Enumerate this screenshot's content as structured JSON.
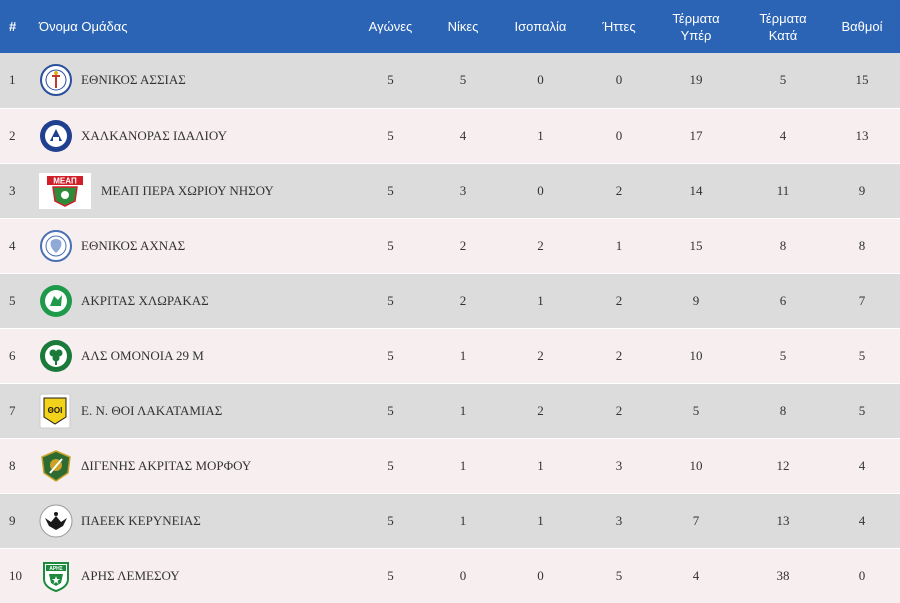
{
  "table": {
    "headers": {
      "rank": "#",
      "team": "Όνομα Ομάδας",
      "played": "Αγώνες",
      "wins": "Νίκες",
      "draws": "Ισοπαλία",
      "losses": "Ήττες",
      "goals_for": "Τέρματα Υπέρ",
      "goals_against": "Τέρματα Κατά",
      "points": "Βαθμοί"
    },
    "rows": [
      {
        "rank": "1",
        "team": "ΕΘΝΙΚΟΣ ΑΣΣΙΑΣ",
        "logo_icon": "ethnikos-assias-crest-icon",
        "played": "5",
        "wins": "5",
        "draws": "0",
        "losses": "0",
        "gf": "19",
        "ga": "5",
        "pts": "15"
      },
      {
        "rank": "2",
        "team": "ΧΑΛΚΑΝΟΡΑΣ ΙΔΑΛΙΟΥ",
        "logo_icon": "chalkanoras-crest-icon",
        "played": "5",
        "wins": "4",
        "draws": "1",
        "losses": "0",
        "gf": "17",
        "ga": "4",
        "pts": "13"
      },
      {
        "rank": "3",
        "team": "ΜΕΑΠ ΠΕΡΑ ΧΩΡΙΟΥ ΝΗΣΟΥ",
        "logo_icon": "meap-crest-icon",
        "logo_text": "ΜΕΑΠ",
        "played": "5",
        "wins": "3",
        "draws": "0",
        "losses": "2",
        "gf": "14",
        "ga": "11",
        "pts": "9"
      },
      {
        "rank": "4",
        "team": "ΕΘΝΙΚΟΣ ΑΧΝΑΣ",
        "logo_icon": "ethnikos-achnas-crest-icon",
        "played": "5",
        "wins": "2",
        "draws": "2",
        "losses": "1",
        "gf": "15",
        "ga": "8",
        "pts": "8"
      },
      {
        "rank": "5",
        "team": "ΑΚΡΙΤΑΣ ΧΛΩΡΑΚΑΣ",
        "logo_icon": "akritas-crest-icon",
        "played": "5",
        "wins": "2",
        "draws": "1",
        "losses": "2",
        "gf": "9",
        "ga": "6",
        "pts": "7"
      },
      {
        "rank": "6",
        "team": "ΑΛΣ ΟΜΟΝΟΙΑ 29 Μ",
        "logo_icon": "omonoia-29m-crest-icon",
        "played": "5",
        "wins": "1",
        "draws": "2",
        "losses": "2",
        "gf": "10",
        "ga": "5",
        "pts": "5"
      },
      {
        "rank": "7",
        "team": "Ε. Ν. ΘΟΙ ΛΑΚΑΤΑΜΙΑΣ",
        "logo_icon": "thoi-crest-icon",
        "logo_text": "ΘΟΙ",
        "played": "5",
        "wins": "1",
        "draws": "2",
        "losses": "2",
        "gf": "5",
        "ga": "8",
        "pts": "5"
      },
      {
        "rank": "8",
        "team": "ΔΙΓΕΝΗΣ ΑΚΡΙΤΑΣ ΜΟΡΦΟΥ",
        "logo_icon": "digenis-crest-icon",
        "played": "5",
        "wins": "1",
        "draws": "1",
        "losses": "3",
        "gf": "10",
        "ga": "12",
        "pts": "4"
      },
      {
        "rank": "9",
        "team": "ΠΑΕΕΚ ΚΕΡΥΝΕΙΑΣ",
        "logo_icon": "paeek-crest-icon",
        "played": "5",
        "wins": "1",
        "draws": "1",
        "losses": "3",
        "gf": "7",
        "ga": "13",
        "pts": "4"
      },
      {
        "rank": "10",
        "team": "ΑΡΗΣ ΛΕΜΕΣΟΥ",
        "logo_icon": "aris-crest-icon",
        "logo_text": "ΑΡΗΣ",
        "played": "5",
        "wins": "0",
        "draws": "0",
        "losses": "5",
        "gf": "4",
        "ga": "38",
        "pts": "0"
      }
    ]
  },
  "colors": {
    "header_bg": "#2b63b5",
    "row_odd": "#dcdcdc",
    "row_even": "#f7efef"
  }
}
